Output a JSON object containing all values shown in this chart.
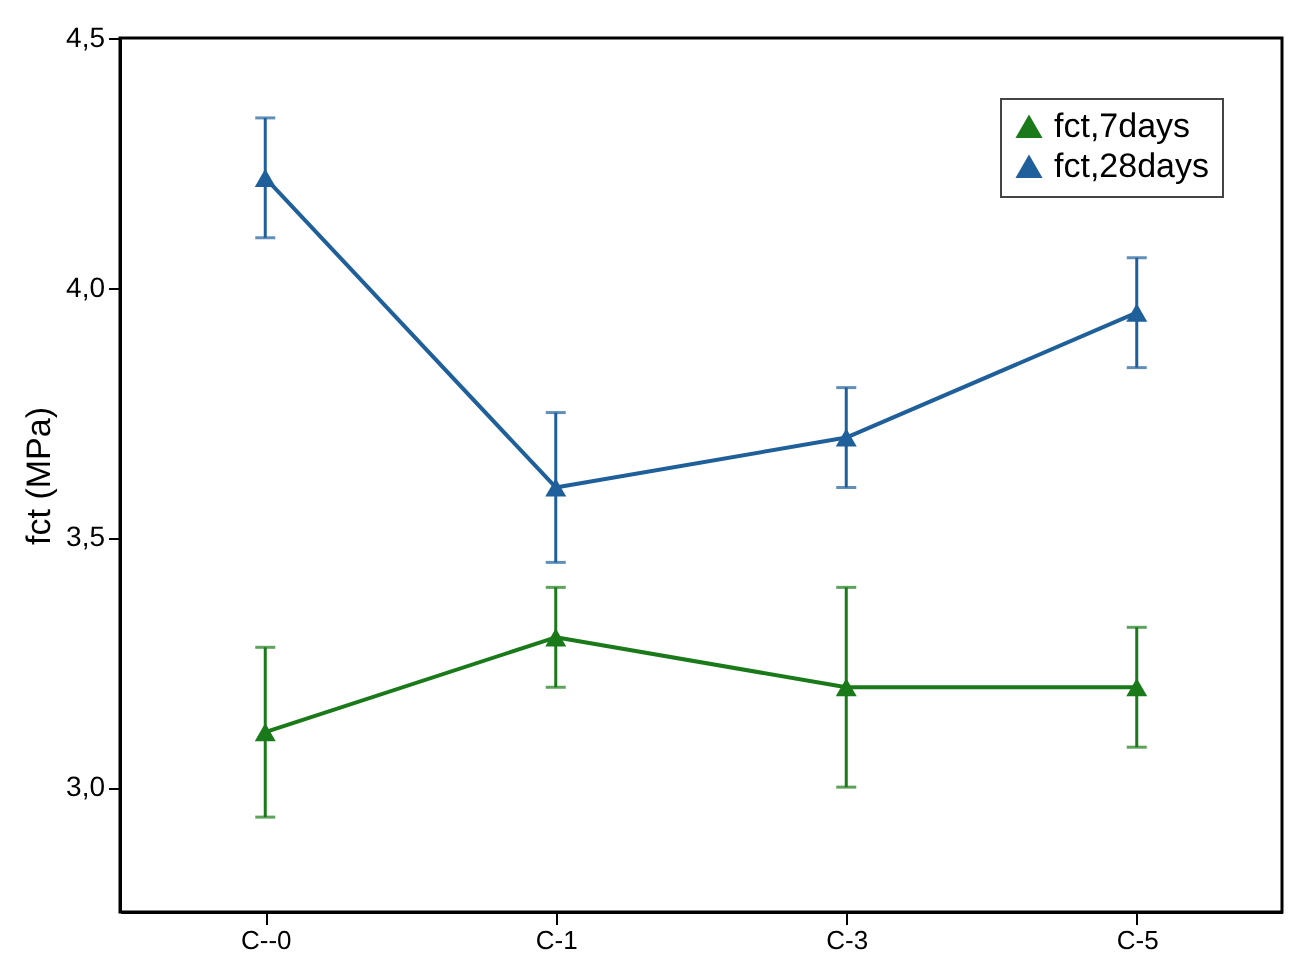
{
  "chart_data": {
    "type": "line",
    "ylabel": "fct (MPa)",
    "categories": [
      "C--0",
      "C-1",
      "C-3",
      "C-5"
    ],
    "series": [
      {
        "name": "fct,7days",
        "color": "#1a7a1a",
        "values": [
          3.11,
          3.3,
          3.2,
          3.2
        ],
        "errors": [
          [
            2.94,
            3.28
          ],
          [
            3.2,
            3.4
          ],
          [
            3.0,
            3.4
          ],
          [
            3.08,
            3.32
          ]
        ]
      },
      {
        "name": "fct,28days",
        "color": "#1f5f9a",
        "values": [
          4.22,
          3.6,
          3.7,
          3.95
        ],
        "errors": [
          [
            4.1,
            4.34
          ],
          [
            3.45,
            3.75
          ],
          [
            3.6,
            3.8
          ],
          [
            3.84,
            4.06
          ]
        ]
      }
    ],
    "ylim": [
      2.75,
      4.5
    ],
    "yticks": [
      {
        "value": 3.0,
        "label": "3,0"
      },
      {
        "value": 3.5,
        "label": "3,5"
      },
      {
        "value": 4.0,
        "label": "4,0"
      },
      {
        "value": 4.5,
        "label": "4,5"
      }
    ],
    "grid": false,
    "legend": "top right",
    "marker": "triangle",
    "line_style": "solid"
  }
}
